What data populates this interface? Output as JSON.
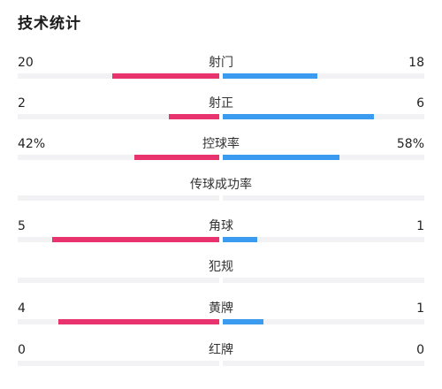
{
  "title": "技术统计",
  "colors": {
    "home": "#e8336f",
    "away": "#3a9bf0",
    "track": "#f2f2f4"
  },
  "stats": [
    {
      "label": "射门",
      "left": "20",
      "right": "18",
      "left_frac": 0.53,
      "right_frac": 0.47
    },
    {
      "label": "射正",
      "left": "2",
      "right": "6",
      "left_frac": 0.25,
      "right_frac": 0.75
    },
    {
      "label": "控球率",
      "left": "42%",
      "right": "58%",
      "left_frac": 0.42,
      "right_frac": 0.58
    },
    {
      "label": "传球成功率",
      "left": "",
      "right": "",
      "left_frac": 0,
      "right_frac": 0
    },
    {
      "label": "角球",
      "left": "5",
      "right": "1",
      "left_frac": 0.83,
      "right_frac": 0.17
    },
    {
      "label": "犯规",
      "left": "",
      "right": "",
      "left_frac": 0,
      "right_frac": 0
    },
    {
      "label": "黄牌",
      "left": "4",
      "right": "1",
      "left_frac": 0.8,
      "right_frac": 0.2
    },
    {
      "label": "红牌",
      "left": "0",
      "right": "0",
      "left_frac": 0,
      "right_frac": 0
    }
  ]
}
